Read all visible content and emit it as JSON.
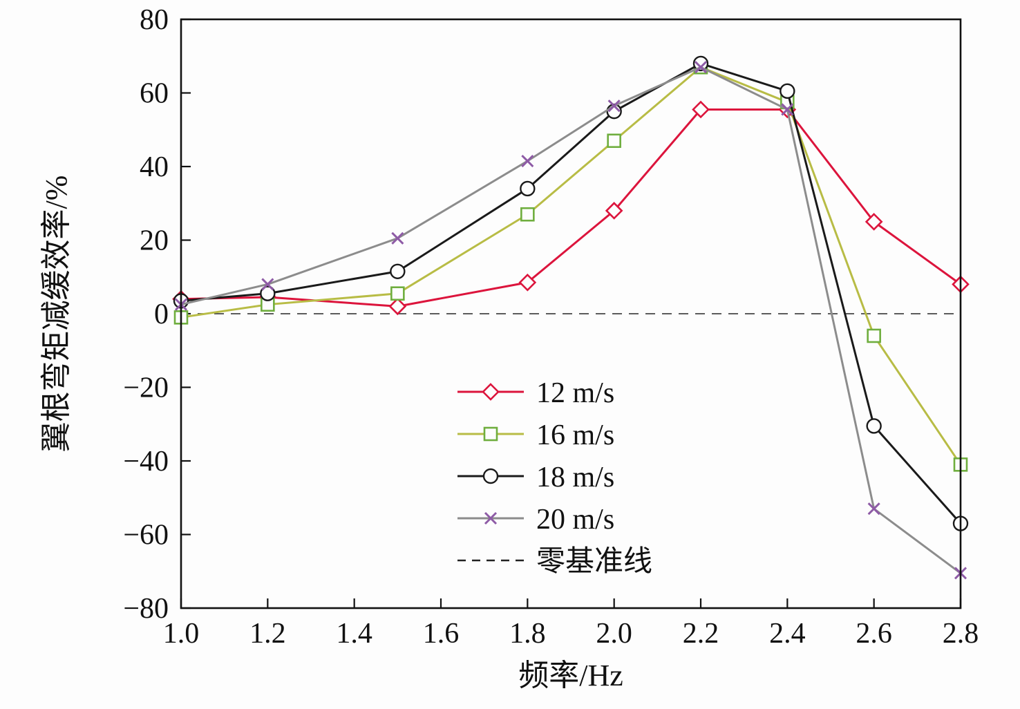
{
  "figure": {
    "background": "#fdfdfd",
    "frame_color": "#111111"
  },
  "chart_data": {
    "type": "line",
    "x": [
      1.0,
      1.2,
      1.5,
      1.8,
      2.0,
      2.2,
      2.4,
      2.6,
      2.8
    ],
    "series": [
      {
        "name": "12 m/s",
        "line_color": "#dc143c",
        "marker": "diamond",
        "marker_color": "#dc143c",
        "values": [
          4,
          4.5,
          2,
          8.5,
          28,
          55.5,
          55.5,
          25,
          8
        ]
      },
      {
        "name": "16 m/s",
        "line_color": "#b8bc45",
        "marker": "square",
        "marker_color": "#6fae3e",
        "values": [
          -1,
          2.5,
          5.5,
          27,
          47,
          67,
          57.5,
          -6,
          -41
        ]
      },
      {
        "name": "18 m/s",
        "line_color": "#1a1a1a",
        "marker": "circle",
        "marker_color": "#1a1a1a",
        "values": [
          3.5,
          5.5,
          11.5,
          34,
          55,
          68,
          60.5,
          -30.5,
          -57
        ]
      },
      {
        "name": "20 m/s",
        "line_color": "#8c8c8c",
        "marker": "x",
        "marker_color": "#8e5ba6",
        "values": [
          2.5,
          8,
          20.5,
          41.5,
          56.5,
          67,
          55.5,
          -53,
          -70.5
        ]
      }
    ],
    "baseline": {
      "name": "零基准线",
      "value": 0,
      "style": "dashed",
      "color": "#444444"
    },
    "title": "",
    "xlabel": "频率/Hz",
    "ylabel": "翼根弯矩减缓效率/%",
    "xlim": [
      1.0,
      2.8
    ],
    "ylim": [
      -80,
      80
    ],
    "xticks": [
      "1.0",
      "1.2",
      "1.4",
      "1.6",
      "1.8",
      "2.0",
      "2.2",
      "2.4",
      "2.6",
      "2.8"
    ],
    "yticks": [
      "−80",
      "−60",
      "−40",
      "−20",
      "0",
      "20",
      "40",
      "60",
      "80"
    ],
    "grid": false,
    "legend_position": "inside-center"
  }
}
